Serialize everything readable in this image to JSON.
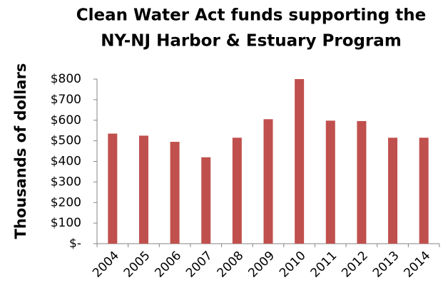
{
  "chart_data": {
    "type": "bar",
    "title": [
      "Clean Water Act funds supporting the",
      "NY-NJ Harbor & Estuary Program"
    ],
    "y_label": "Thousands of dollars",
    "categories": [
      "2004",
      "2005",
      "2006",
      "2007",
      "2008",
      "2009",
      "2010",
      "2011",
      "2012",
      "2013",
      "2014"
    ],
    "values": [
      535,
      525,
      495,
      420,
      515,
      605,
      800,
      598,
      596,
      515,
      515
    ],
    "color": "#c0504d",
    "ylim": [
      0,
      800
    ],
    "yticks": [
      {
        "value": 0,
        "label": "$-"
      },
      {
        "value": 100,
        "label": "$100"
      },
      {
        "value": 200,
        "label": "$200"
      },
      {
        "value": 300,
        "label": "$300"
      },
      {
        "value": 400,
        "label": "$400"
      },
      {
        "value": 500,
        "label": "$500"
      },
      {
        "value": 600,
        "label": "$600"
      },
      {
        "value": 700,
        "label": "$700"
      },
      {
        "value": 800,
        "label": "$800"
      }
    ],
    "grid": false
  }
}
